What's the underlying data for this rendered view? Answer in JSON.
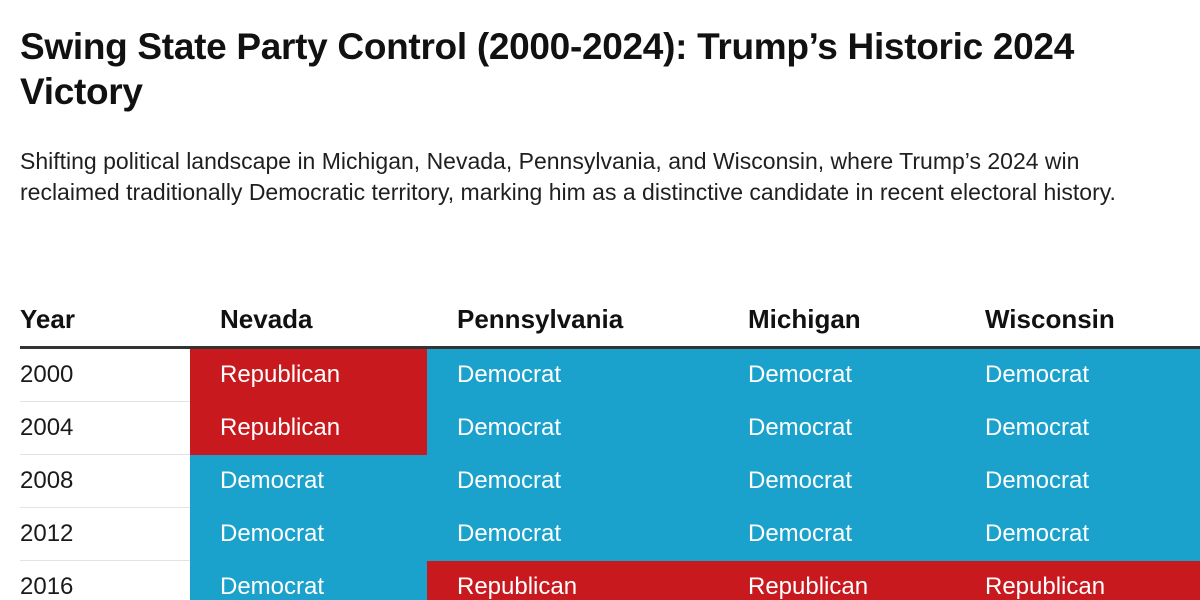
{
  "title": "Swing State Party Control (2000-2024): Trump’s Historic 2024 Victory",
  "subtitle": "Shifting political landscape in Michigan, Nevada, Pennsylvania, and Wisconsin, where Trump’s 2024 win reclaimed traditionally Democratic territory, marking him as a distinctive candidate in recent electoral history.",
  "colors": {
    "Republican": "#c8191e",
    "Democrat": "#1aa1cc"
  },
  "chart_data": {
    "type": "table",
    "title": "Swing State Party Control (2000-2024): Trump’s Historic 2024 Victory",
    "subtitle": "Shifting political landscape in Michigan, Nevada, Pennsylvania, and Wisconsin, where Trump’s 2024 win reclaimed traditionally Democratic territory, marking him as a distinctive candidate in recent electoral history.",
    "columns": [
      "Year",
      "Nevada",
      "Pennsylvania",
      "Michigan",
      "Wisconsin"
    ],
    "rows": [
      {
        "year": "2000",
        "values": [
          "Republican",
          "Democrat",
          "Democrat",
          "Democrat"
        ]
      },
      {
        "year": "2004",
        "values": [
          "Republican",
          "Democrat",
          "Democrat",
          "Democrat"
        ]
      },
      {
        "year": "2008",
        "values": [
          "Democrat",
          "Democrat",
          "Democrat",
          "Democrat"
        ]
      },
      {
        "year": "2012",
        "values": [
          "Democrat",
          "Democrat",
          "Democrat",
          "Democrat"
        ]
      },
      {
        "year": "2016",
        "values": [
          "Democrat",
          "Republican",
          "Republican",
          "Republican"
        ]
      }
    ]
  }
}
